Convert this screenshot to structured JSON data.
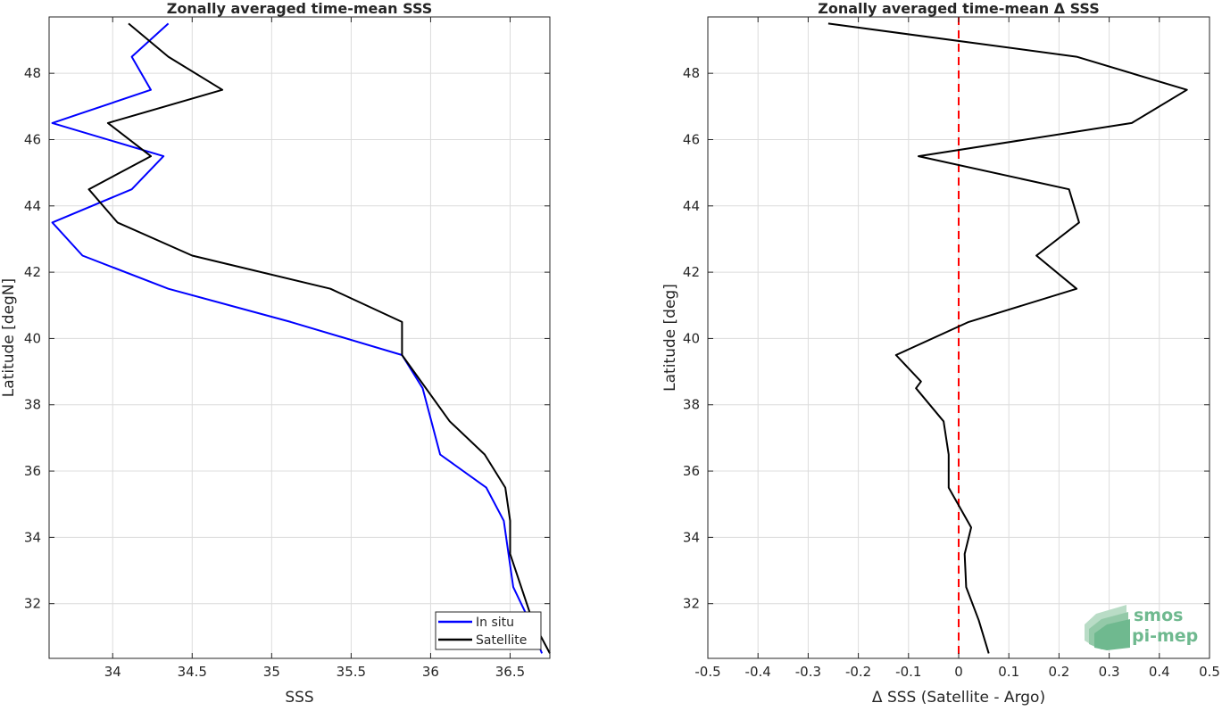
{
  "colors": {
    "in_situ": "#0000ff",
    "satellite": "#000000",
    "zero_line": "#ff0000",
    "grid": "#dcdcdc",
    "axis": "#262626",
    "logo": "#6fb98f"
  },
  "logo": {
    "line1": "smos",
    "line2": "pi-mep"
  },
  "chart_data": [
    {
      "type": "line",
      "title": "Zonally averaged time-mean SSS",
      "xlabel": "SSS",
      "ylabel": "Latitude [degN]",
      "xlim": [
        33.6,
        36.75
      ],
      "ylim": [
        30.35,
        49.7
      ],
      "xticks": [
        34,
        34.5,
        35,
        35.5,
        36,
        36.5
      ],
      "xtick_labels": [
        "34",
        "34.5",
        "35",
        "35.5",
        "36",
        "36.5"
      ],
      "yticks": [
        32,
        34,
        36,
        38,
        40,
        42,
        44,
        46,
        48
      ],
      "ytick_labels": [
        "32",
        "34",
        "36",
        "38",
        "40",
        "42",
        "44",
        "46",
        "48"
      ],
      "grid": true,
      "legend_position": "bottom-right",
      "series": [
        {
          "name": "In situ",
          "color": "#0000ff",
          "x": [
            36.7,
            36.62,
            36.52,
            36.49,
            36.46,
            36.35,
            36.06,
            35.95,
            35.82,
            35.12,
            34.35,
            33.81,
            33.62,
            34.12,
            34.32,
            33.62,
            34.24,
            34.12,
            34.35
          ],
          "y": [
            30.5,
            31.5,
            32.5,
            33.5,
            34.5,
            35.5,
            36.5,
            38.5,
            39.5,
            40.5,
            41.5,
            42.5,
            43.5,
            44.5,
            45.5,
            46.5,
            47.5,
            48.5,
            49.5
          ]
        },
        {
          "name": "Satellite",
          "color": "#000000",
          "x": [
            36.75,
            36.64,
            36.5,
            36.5,
            36.47,
            36.34,
            36.12,
            35.82,
            35.82,
            35.37,
            34.5,
            34.03,
            33.85,
            34.24,
            33.97,
            34.69,
            34.35,
            34.1
          ],
          "y": [
            30.5,
            31.5,
            33.5,
            34.5,
            35.5,
            36.5,
            37.5,
            39.5,
            40.5,
            41.5,
            42.5,
            43.5,
            44.5,
            45.5,
            46.5,
            47.5,
            48.5,
            49.5
          ]
        }
      ]
    },
    {
      "type": "line",
      "title": "Zonally averaged time-mean Δ SSS",
      "xlabel": "Δ SSS (Satellite - Argo)",
      "ylabel": "Latitude [deg]",
      "xlim": [
        -0.5,
        0.5
      ],
      "ylim": [
        30.35,
        49.7
      ],
      "xticks": [
        -0.5,
        -0.4,
        -0.3,
        -0.2,
        -0.1,
        0,
        0.1,
        0.2,
        0.3,
        0.4,
        0.5
      ],
      "xtick_labels": [
        "-0.5",
        "-0.4",
        "-0.3",
        "-0.2",
        "-0.1",
        "0",
        "0.1",
        "0.2",
        "0.3",
        "0.4",
        "0.5"
      ],
      "yticks": [
        32,
        34,
        36,
        38,
        40,
        42,
        44,
        46,
        48
      ],
      "ytick_labels": [
        "32",
        "34",
        "36",
        "38",
        "40",
        "42",
        "44",
        "46",
        "48"
      ],
      "grid": true,
      "reference_line": {
        "x": 0,
        "color": "#ff0000",
        "style": "dashed"
      },
      "series": [
        {
          "color": "#000000",
          "x": [
            0.06,
            0.04,
            0.015,
            0.012,
            0.025,
            -0.02,
            -0.02,
            -0.03,
            -0.085,
            -0.075,
            -0.125,
            0.02,
            0.235,
            0.155,
            0.24,
            0.22,
            -0.08,
            0.345,
            0.455,
            0.235,
            -0.26
          ],
          "y": [
            30.5,
            31.5,
            32.5,
            33.5,
            34.3,
            35.5,
            36.5,
            37.5,
            38.5,
            38.7,
            39.5,
            40.5,
            41.5,
            42.5,
            43.5,
            44.5,
            45.5,
            46.5,
            47.5,
            48.5,
            49.5
          ]
        }
      ]
    }
  ]
}
